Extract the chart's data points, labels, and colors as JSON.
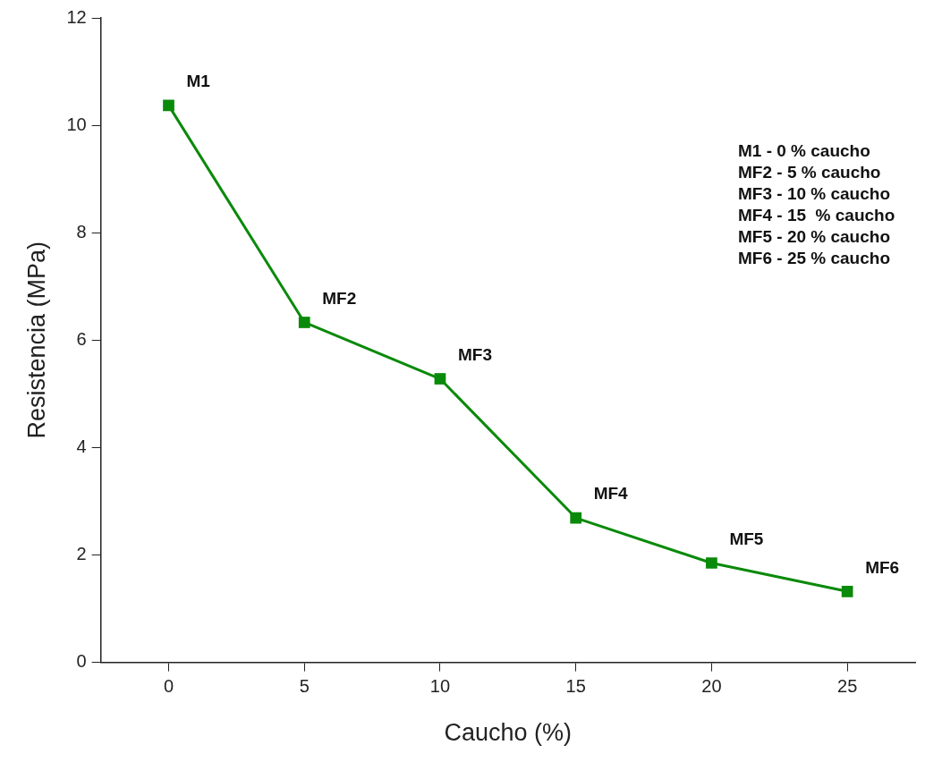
{
  "chart_data": {
    "type": "line",
    "xlabel": "Caucho (%)",
    "ylabel": "Resistencia (MPa)",
    "x": [
      0,
      5,
      10,
      15,
      20,
      25
    ],
    "series": [
      {
        "color": "#0a8a0a",
        "values": [
          10.37,
          6.33,
          5.28,
          2.69,
          1.85,
          1.32
        ]
      }
    ],
    "xlim": [
      -2.5,
      27.5
    ],
    "xticks": [
      0,
      5,
      10,
      15,
      20,
      25
    ],
    "ylim": [
      0,
      12
    ],
    "yticks": [
      0,
      2,
      4,
      6,
      8,
      10,
      12
    ],
    "marker": "square",
    "line_style": "solid",
    "grid": false,
    "legend": false,
    "annotations": [
      {
        "text": "M1",
        "x": 0,
        "y": 10.37
      },
      {
        "text": "MF2",
        "x": 5,
        "y": 6.33
      },
      {
        "text": "MF3",
        "x": 10,
        "y": 5.28
      },
      {
        "text": "MF4",
        "x": 15,
        "y": 2.69
      },
      {
        "text": "MF5",
        "x": 20,
        "y": 1.85
      },
      {
        "text": "MF6",
        "x": 25,
        "y": 1.32
      },
      "M1 - 0 % caucho",
      "MF2 - 5 % caucho",
      "MF3 - 10 % caucho",
      "MF4 - 15  % caucho",
      "MF5 - 20 % caucho",
      "MF6 - 25 % caucho"
    ]
  }
}
